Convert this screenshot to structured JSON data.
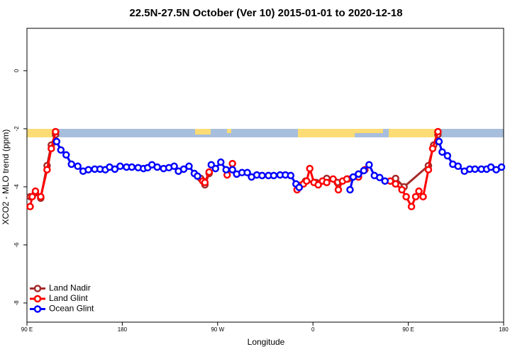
{
  "chart_data": {
    "type": "line",
    "title": "22.5N-27.5N October (Ver 10)   2015-01-01 to 2020-12-18",
    "x_label": "Longitude",
    "y_label": "XCO2 - MLO trend (ppm)",
    "xlim": [
      90,
      540
    ],
    "ylim": [
      -8.66,
      1.46
    ],
    "xticks": [
      {
        "value": 90,
        "label": "90 E"
      },
      180,
      {
        "value": 270,
        "label": "90 W"
      },
      {
        "value": 360,
        "label": "0"
      },
      {
        "value": 450,
        "label": "90 E"
      },
      {
        "value": 540,
        "label": "180"
      }
    ],
    "yticks": [
      0,
      -2,
      -4,
      -6,
      -8
    ],
    "legend": "bottomleft",
    "series": [
      {
        "name": "Land Nadir",
        "color": "#a52a2a",
        "x": [
          93,
          98,
          103,
          109,
          113,
          117,
          null,
          254,
          258,
          262,
          null,
          348,
          353,
          363,
          373,
          383,
          393,
          403,
          null,
          438,
          446,
          469,
          474,
          478
        ],
        "values": [
          -4.34,
          -4.2,
          -4.39,
          -3.27,
          -2.56,
          -2.2,
          null,
          -3.71,
          -3.93,
          -3.54,
          null,
          -3.95,
          -3.8,
          -3.85,
          -3.71,
          -3.85,
          -3.73,
          -3.56,
          null,
          -3.71,
          -4.0,
          -3.27,
          -2.56,
          -2.2
        ]
      },
      {
        "name": "Land Glint",
        "color": "#ff0000",
        "x": [
          93,
          95,
          98,
          103,
          109,
          113,
          117,
          null,
          256,
          258,
          262,
          null,
          279,
          284,
          null,
          345,
          351,
          354,
          357,
          361,
          365,
          369,
          373,
          379,
          384,
          388,
          392,
          null,
          403,
          409,
          null,
          433,
          438,
          444,
          448,
          453,
          457,
          460,
          464,
          469,
          473,
          478
        ],
        "values": [
          -4.68,
          -4.34,
          -4.15,
          -4.34,
          -3.41,
          -2.68,
          -2.1,
          null,
          -3.8,
          -3.85,
          -3.49,
          null,
          -3.59,
          -3.2,
          null,
          -4.1,
          -3.9,
          -3.8,
          -3.37,
          -3.85,
          -3.93,
          -3.8,
          -3.85,
          -3.73,
          -4.1,
          -3.8,
          -3.73,
          null,
          -3.66,
          -3.41,
          null,
          -3.8,
          -3.9,
          -4.1,
          -4.34,
          -4.68,
          -4.34,
          -4.15,
          -4.34,
          -3.41,
          -2.68,
          -2.1
        ]
      },
      {
        "name": "Ocean Glint",
        "color": "#0000ff",
        "x": [
          118,
          122,
          127,
          132,
          138,
          143,
          148,
          154,
          159,
          164,
          168,
          173,
          178,
          184,
          189,
          195,
          200,
          204,
          208,
          213,
          219,
          224,
          229,
          233,
          238,
          243,
          248,
          251,
          null,
          264,
          268,
          273,
          278,
          284,
          288,
          293,
          298,
          302,
          307,
          312,
          318,
          323,
          329,
          334,
          339,
          344,
          347,
          null,
          395,
          398,
          403,
          408,
          413,
          418,
          423,
          428,
          null,
          479,
          482,
          487,
          492,
          497,
          503,
          508,
          513,
          519,
          524,
          528,
          533,
          538
        ],
        "values": [
          -2.44,
          -2.73,
          -2.9,
          -3.22,
          -3.29,
          -3.46,
          -3.41,
          -3.39,
          -3.39,
          -3.41,
          -3.32,
          -3.39,
          -3.29,
          -3.32,
          -3.32,
          -3.34,
          -3.37,
          -3.34,
          -3.24,
          -3.32,
          -3.37,
          -3.34,
          -3.29,
          -3.46,
          -3.39,
          -3.29,
          -3.54,
          -3.63,
          null,
          -3.24,
          -3.37,
          -3.15,
          -3.41,
          -3.41,
          -3.56,
          -3.51,
          -3.51,
          -3.66,
          -3.59,
          -3.61,
          -3.61,
          -3.61,
          -3.59,
          -3.59,
          -3.61,
          -3.9,
          -4.02,
          null,
          -4.1,
          -3.66,
          -3.56,
          -3.44,
          -3.24,
          -3.61,
          -3.68,
          -3.8,
          null,
          -2.44,
          -2.8,
          -2.93,
          -3.22,
          -3.29,
          -3.46,
          -3.39,
          -3.39,
          -3.39,
          -3.39,
          -3.32,
          -3.41,
          -3.32
        ]
      }
    ]
  }
}
